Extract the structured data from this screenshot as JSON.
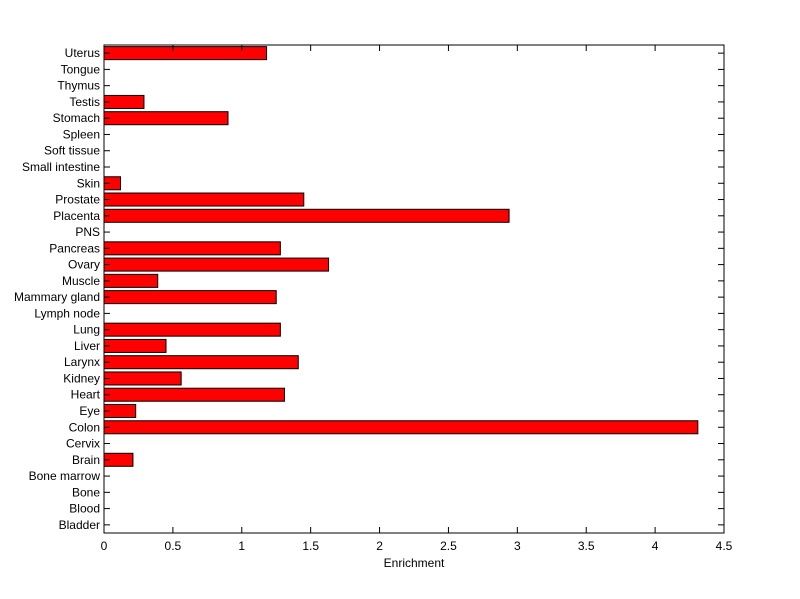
{
  "chart_data": {
    "type": "bar",
    "orientation": "horizontal",
    "title": "",
    "xlabel": "Enrichment",
    "ylabel": "",
    "xlim": [
      0,
      4.5
    ],
    "xticks": [
      "0",
      "0.5",
      "1",
      "1.5",
      "2",
      "2.5",
      "3",
      "3.5",
      "4",
      "4.5"
    ],
    "grid": false,
    "bar_color": "#ff0000",
    "categories": [
      "Bladder",
      "Blood",
      "Bone",
      "Bone marrow",
      "Brain",
      "Cervix",
      "Colon",
      "Eye",
      "Heart",
      "Kidney",
      "Larynx",
      "Liver",
      "Lung",
      "Lymph node",
      "Mammary gland",
      "Muscle",
      "Ovary",
      "Pancreas",
      "PNS",
      "Placenta",
      "Prostate",
      "Skin",
      "Small intestine",
      "Soft tissue",
      "Spleen",
      "Stomach",
      "Testis",
      "Thymus",
      "Tongue",
      "Uterus"
    ],
    "values": [
      0,
      0,
      0,
      0,
      0.21,
      0,
      4.31,
      0.23,
      1.31,
      0.56,
      1.41,
      0.45,
      1.28,
      0,
      1.25,
      0.39,
      1.63,
      1.28,
      0,
      2.94,
      1.45,
      0.12,
      0,
      0,
      0,
      0.9,
      0.29,
      0,
      0,
      1.18
    ]
  }
}
